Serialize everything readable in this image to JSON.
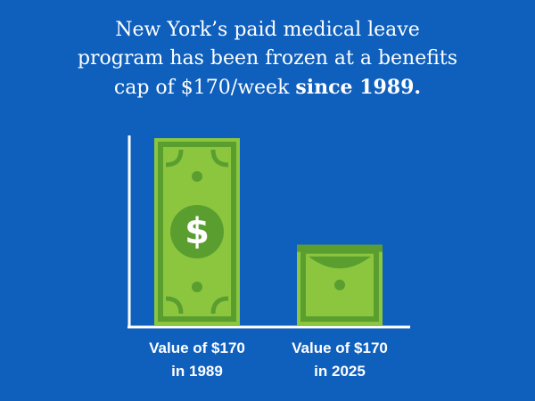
{
  "title": {
    "line1": "New York’s paid medical leave",
    "line2": "program has been frozen at a benefits",
    "line3_plain": "cap of $170/week ",
    "line3_bold": "since 1989."
  },
  "colors": {
    "background": "#0f5fbd",
    "bill_light": "#8cc63f",
    "bill_dark": "#5a9e2f",
    "axis": "#ffffff"
  },
  "chart_data": {
    "type": "bar",
    "categories": [
      "Value of $170 in 1989",
      "Value of $170 in 2025"
    ],
    "category_lines": [
      [
        "Value of $170",
        "in 1989"
      ],
      [
        "Value of $170",
        "in 2025"
      ]
    ],
    "values": [
      100,
      43
    ],
    "bar_style": "stacked dollar bills",
    "bar_icon_symbol": "$",
    "ylim": [
      0,
      100
    ],
    "axes": "left and bottom lines only, no ticks"
  }
}
